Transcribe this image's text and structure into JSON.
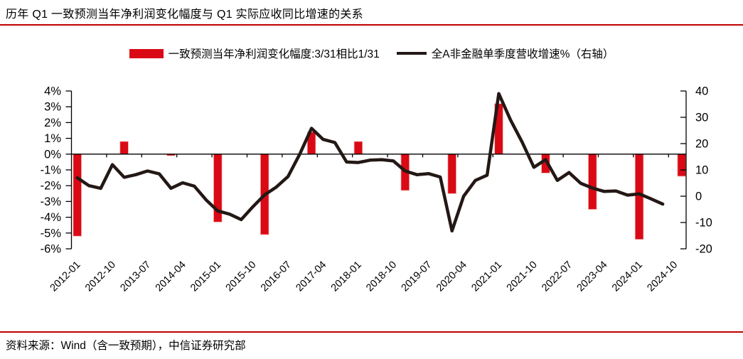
{
  "title": "历年 Q1 一致预测当年净利润变化幅度与 Q1 实际应收同比增速的关系",
  "source": "资料来源：Wind（含一致预期），中信证券研究部",
  "colors": {
    "bar_red": "#d90915",
    "bar_edge": "#f0a9a4",
    "line_black": "#231815",
    "rule_red": "#c00000",
    "axis_black": "#000000"
  },
  "legend": [
    {
      "label": "一致预测当年净利润变化幅度:3/31相比1/31",
      "type": "bar",
      "color": "#d90915"
    },
    {
      "label": "全A非金融单季度营收增速%（右轴）",
      "type": "line",
      "color": "#231815"
    }
  ],
  "chart_data": {
    "type": "bar+line",
    "categories": [
      "2012-01",
      "2012-04",
      "2012-07",
      "2012-10",
      "2013-01",
      "2013-04",
      "2013-07",
      "2013-10",
      "2014-01",
      "2014-04",
      "2014-07",
      "2014-10",
      "2015-01",
      "2015-04",
      "2015-07",
      "2015-10",
      "2016-01",
      "2016-04",
      "2016-07",
      "2016-10",
      "2017-01",
      "2017-04",
      "2017-07",
      "2017-10",
      "2018-01",
      "2018-04",
      "2018-07",
      "2018-10",
      "2019-01",
      "2019-04",
      "2019-07",
      "2019-10",
      "2020-01",
      "2020-04",
      "2020-07",
      "2020-10",
      "2021-01",
      "2021-04",
      "2021-07",
      "2021-10",
      "2022-01",
      "2022-04",
      "2022-07",
      "2022-10",
      "2023-01",
      "2023-04",
      "2023-07",
      "2023-10",
      "2024-01",
      "2024-04",
      "2024-07",
      "2024-10",
      "2025-01"
    ],
    "x_tick_labels": [
      "2012-01",
      "2012-10",
      "2013-07",
      "2014-04",
      "2015-01",
      "2015-10",
      "2016-07",
      "2017-04",
      "2018-01",
      "2018-10",
      "2019-07",
      "2020-04",
      "2021-01",
      "2021-10",
      "2022-07",
      "2023-04",
      "2024-01",
      "2024-10"
    ],
    "x_label_step": 3,
    "left_axis": {
      "min": -6,
      "max": 4,
      "tick_step": 1,
      "tick_labels": [
        "4%",
        "3%",
        "2%",
        "1%",
        "0%",
        "-1%",
        "-2%",
        "-3%",
        "-4%",
        "-5%",
        "-6%"
      ]
    },
    "right_axis": {
      "min": -20,
      "max": 40,
      "tick_step": 10,
      "tick_labels": [
        "40",
        "30",
        "20",
        "10",
        "0",
        "-10",
        "-20"
      ]
    },
    "series": [
      {
        "name": "一致预测当年净利润变化幅度:3/31相比1/31",
        "type": "bar",
        "axis": "left",
        "unit": "%",
        "points": [
          {
            "x": "2012-01",
            "y": -5.2
          },
          {
            "x": "2013-01",
            "y": 0.8
          },
          {
            "x": "2014-01",
            "y": -0.1
          },
          {
            "x": "2015-01",
            "y": -4.3
          },
          {
            "x": "2016-01",
            "y": -5.1
          },
          {
            "x": "2017-01",
            "y": 1.4
          },
          {
            "x": "2018-01",
            "y": 0.8
          },
          {
            "x": "2019-01",
            "y": -2.3
          },
          {
            "x": "2020-01",
            "y": -2.5
          },
          {
            "x": "2021-01",
            "y": 3.2
          },
          {
            "x": "2022-01",
            "y": -1.2
          },
          {
            "x": "2023-01",
            "y": -3.5
          },
          {
            "x": "2024-01",
            "y": -5.4
          },
          {
            "x": "2025-01",
            "y": -1.4
          }
        ]
      },
      {
        "name": "全A非金融单季度营收增速%（右轴）",
        "type": "line",
        "axis": "right",
        "unit": "%",
        "values": [
          7,
          4,
          3,
          12,
          7.2,
          8.2,
          9.6,
          8.5,
          3,
          5.1,
          3.8,
          -1.4,
          -5.6,
          -6.8,
          -8.9,
          -4,
          0.5,
          3.5,
          7.5,
          16,
          25.8,
          21.6,
          20.4,
          13,
          12.8,
          13.7,
          13.9,
          13.4,
          9.6,
          8.2,
          8.6,
          7.3,
          -13.2,
          0,
          6,
          8,
          39,
          29,
          20.5,
          11,
          13.9,
          6,
          9,
          4.9,
          3.1,
          1.8,
          2,
          0.4,
          0.9,
          -1,
          -3,
          null,
          null
        ]
      }
    ],
    "legend_position": "top",
    "grid": false
  }
}
